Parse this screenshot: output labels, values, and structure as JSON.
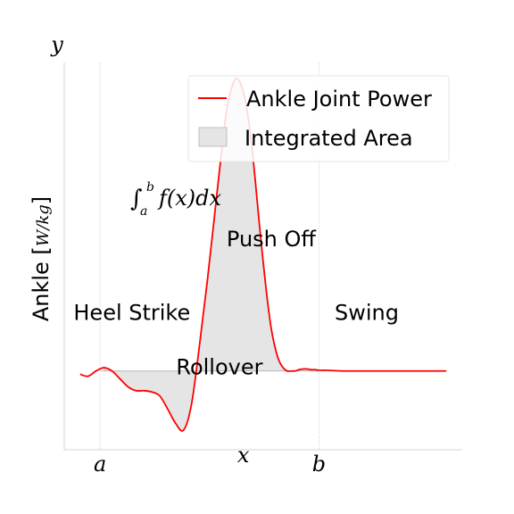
{
  "chart_data": {
    "type": "area",
    "ylabel": "Ankle [W/kg]",
    "ylabel_prefix": "Ankle",
    "ylabel_unit": "W/kg",
    "corner_axis_label": "y",
    "xtick_labels": [
      {
        "text": "a",
        "x": 0.09
      },
      {
        "text": "x",
        "x": 0.45
      },
      {
        "text": "b",
        "x": 0.64
      }
    ],
    "xlim": [
      0,
      1
    ],
    "ylim": [
      -1.2,
      4.7
    ],
    "grid": true,
    "grid_x": [
      0.09,
      0.64
    ],
    "baseline": 0.0,
    "integration_range": [
      0.09,
      0.64
    ],
    "series": [
      {
        "name": "Ankle Joint Power",
        "color": "#ff0000",
        "x": [
          0.04,
          0.06,
          0.08,
          0.1,
          0.12,
          0.14,
          0.16,
          0.18,
          0.2,
          0.22,
          0.24,
          0.26,
          0.28,
          0.3,
          0.32,
          0.34,
          0.36,
          0.38,
          0.4,
          0.41,
          0.42,
          0.43,
          0.44,
          0.45,
          0.46,
          0.47,
          0.48,
          0.49,
          0.5,
          0.51,
          0.52,
          0.53,
          0.54,
          0.55,
          0.56,
          0.57,
          0.58,
          0.59,
          0.6,
          0.61,
          0.62,
          0.63,
          0.64,
          0.66,
          0.7,
          0.75,
          0.8,
          0.85,
          0.9,
          0.96
        ],
        "y": [
          -0.05,
          -0.08,
          0.0,
          0.05,
          0.0,
          -0.12,
          -0.24,
          -0.3,
          -0.3,
          -0.32,
          -0.38,
          -0.58,
          -0.8,
          -0.9,
          -0.5,
          0.4,
          1.4,
          2.5,
          3.6,
          4.05,
          4.3,
          4.45,
          4.42,
          4.25,
          3.95,
          3.5,
          2.9,
          2.25,
          1.65,
          1.1,
          0.65,
          0.35,
          0.15,
          0.05,
          0.0,
          0.0,
          0.0,
          0.02,
          0.03,
          0.03,
          0.02,
          0.02,
          0.01,
          0.01,
          0.0,
          0.0,
          0.0,
          0.0,
          0.0,
          0.0
        ]
      }
    ],
    "legend": {
      "placement": "top-right",
      "entries": [
        {
          "label": "Ankle Joint Power",
          "kind": "line",
          "color": "#ff0000"
        },
        {
          "label": "Integrated Area",
          "kind": "patch",
          "color": "#e5e5e5"
        }
      ]
    },
    "annotations": [
      {
        "text": "Heel Strike",
        "x": 0.17,
        "y": 0.78
      },
      {
        "text": "Rollover",
        "x": 0.39,
        "y": -0.05
      },
      {
        "text": "Push Off",
        "x": 0.52,
        "y": 1.9
      },
      {
        "text": "Swing",
        "x": 0.76,
        "y": 0.78
      }
    ],
    "formula": {
      "text": "∫ab f(x)dx",
      "x": 0.2,
      "y": 2.7
    }
  }
}
